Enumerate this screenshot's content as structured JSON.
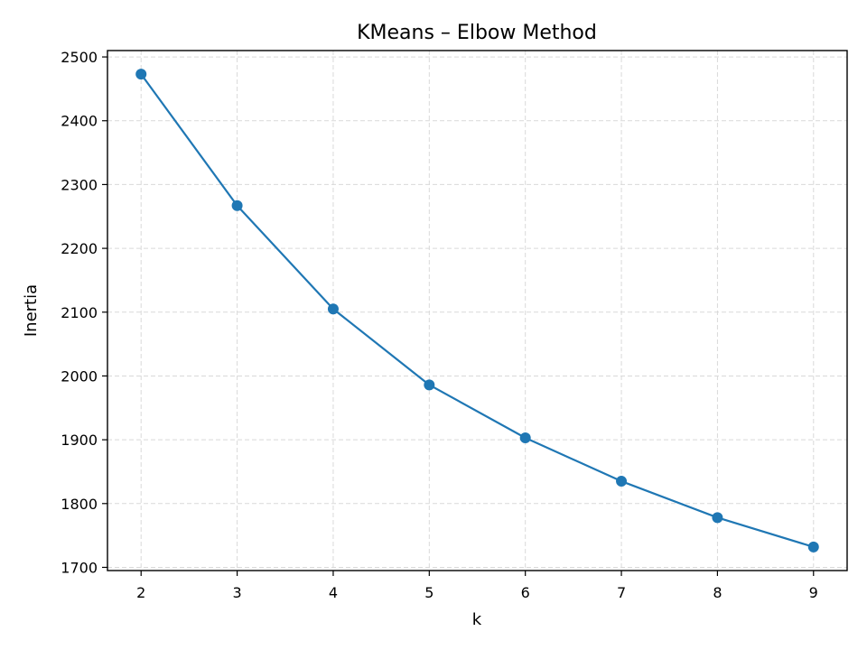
{
  "chart_data": {
    "type": "line",
    "title": "KMeans – Elbow Method",
    "xlabel": "k",
    "ylabel": "Inertia",
    "x": [
      2,
      3,
      4,
      5,
      6,
      7,
      8,
      9
    ],
    "series": [
      {
        "values": [
          2473,
          2267,
          2105,
          1986,
          1903,
          1835,
          1778,
          1732
        ],
        "marker": "circle"
      }
    ],
    "xticks": [
      "2",
      "3",
      "4",
      "5",
      "6",
      "7",
      "8",
      "9"
    ],
    "yticks": [
      "1700",
      "1800",
      "1900",
      "2000",
      "2100",
      "2200",
      "2300",
      "2400",
      "2500"
    ],
    "xlim": [
      1.65,
      9.35
    ],
    "ylim": [
      1695,
      2510
    ],
    "grid": true,
    "colors": {
      "line": "#1f77b4",
      "grid": "#d9d9d9",
      "axes": "#000000"
    }
  }
}
